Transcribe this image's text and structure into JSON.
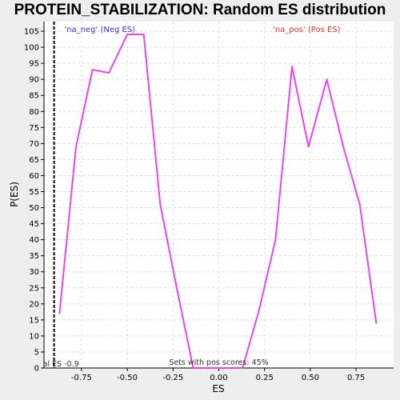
{
  "chart_data": {
    "type": "line",
    "title": "PROTEIN_STABILIZATION: Random ES distribution",
    "xlabel": "ES",
    "ylabel": "P(ES)",
    "xlim": [
      -0.955,
      0.955
    ],
    "ylim": [
      0,
      108
    ],
    "x_ticks": [
      {
        "value": -0.75,
        "label": "-0.75"
      },
      {
        "value": -0.5,
        "label": "-0.50"
      },
      {
        "value": -0.25,
        "label": "-0.25"
      },
      {
        "value": 0.0,
        "label": "0.00"
      },
      {
        "value": 0.25,
        "label": "0.25"
      },
      {
        "value": 0.5,
        "label": "0.50"
      },
      {
        "value": 0.75,
        "label": "0.75"
      }
    ],
    "y_ticks": [
      0,
      5,
      10,
      15,
      20,
      25,
      30,
      35,
      40,
      45,
      50,
      55,
      60,
      65,
      70,
      75,
      80,
      85,
      90,
      95,
      100,
      105
    ],
    "grid": true,
    "series": [
      {
        "name": "",
        "color": "#ee44ee",
        "x": [
          -0.87,
          -0.78,
          -0.69,
          -0.6,
          -0.5,
          -0.41,
          -0.32,
          -0.23,
          -0.14,
          -0.05,
          0.04,
          0.13,
          0.22,
          0.31,
          0.4,
          0.49,
          0.59,
          0.68,
          0.77,
          0.86
        ],
        "y": [
          17,
          69,
          93,
          92,
          104,
          104,
          51,
          25,
          0,
          0,
          0,
          0,
          18,
          40,
          94,
          69,
          90,
          69,
          51,
          14
        ]
      }
    ],
    "vertical_line": {
      "x": -0.9,
      "label": "al ES -0.9",
      "style": "dashed",
      "color": "#000000"
    },
    "annotations": [
      {
        "text": "'na_neg' (Neg ES)",
        "color": "#3333cc",
        "x": -0.65
      },
      {
        "text": "'na_pos' (Pos ES)",
        "color": "#ee3333",
        "x": 0.48
      },
      {
        "text": "Sets with pos scores: 45%",
        "color": "#333333",
        "x": 0.0
      }
    ]
  }
}
